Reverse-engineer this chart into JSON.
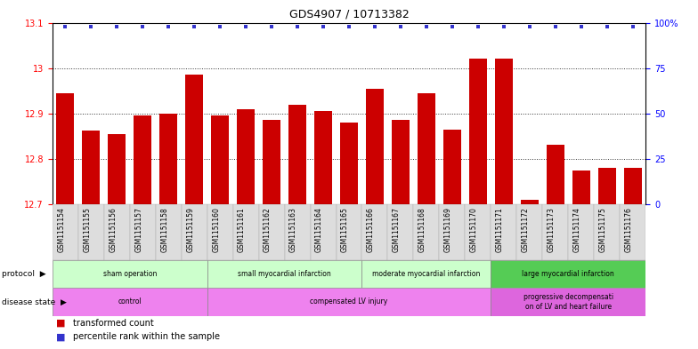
{
  "title": "GDS4907 / 10713382",
  "samples": [
    "GSM1151154",
    "GSM1151155",
    "GSM1151156",
    "GSM1151157",
    "GSM1151158",
    "GSM1151159",
    "GSM1151160",
    "GSM1151161",
    "GSM1151162",
    "GSM1151163",
    "GSM1151164",
    "GSM1151165",
    "GSM1151166",
    "GSM1151167",
    "GSM1151168",
    "GSM1151169",
    "GSM1151170",
    "GSM1151171",
    "GSM1151172",
    "GSM1151173",
    "GSM1151174",
    "GSM1151175",
    "GSM1151176"
  ],
  "bar_values": [
    12.945,
    12.862,
    12.855,
    12.895,
    12.9,
    12.985,
    12.895,
    12.91,
    12.885,
    12.92,
    12.905,
    12.88,
    12.955,
    12.885,
    12.945,
    12.865,
    13.02,
    13.02,
    12.71,
    12.83,
    12.775,
    12.78,
    12.78
  ],
  "percentile_values": [
    98,
    98,
    98,
    98,
    98,
    98,
    98,
    98,
    98,
    98,
    98,
    98,
    98,
    98,
    98,
    98,
    98,
    98,
    98,
    98,
    98,
    98,
    98
  ],
  "ylim_left": [
    12.7,
    13.1
  ],
  "ylim_right": [
    0,
    100
  ],
  "yticks_left": [
    12.7,
    12.8,
    12.9,
    13.0,
    13.1
  ],
  "ytick_labels_left": [
    "12.7",
    "12.8",
    "12.9",
    "13",
    "13.1"
  ],
  "yticks_right": [
    0,
    25,
    50,
    75,
    100
  ],
  "ytick_labels_right": [
    "0",
    "25",
    "50",
    "75",
    "100%"
  ],
  "bar_color": "#CC0000",
  "dot_color": "#3333CC",
  "bar_width": 0.7,
  "grid_lines": [
    12.8,
    12.9,
    13.0
  ],
  "protocol_groups": [
    {
      "label": "sham operation",
      "start": 0,
      "end": 5,
      "color": "#ccffcc"
    },
    {
      "label": "small myocardial infarction",
      "start": 6,
      "end": 11,
      "color": "#ccffcc"
    },
    {
      "label": "moderate myocardial infarction",
      "start": 12,
      "end": 16,
      "color": "#ccffcc"
    },
    {
      "label": "large myocardial infarction",
      "start": 17,
      "end": 22,
      "color": "#55cc55"
    }
  ],
  "disease_groups": [
    {
      "label": "control",
      "start": 0,
      "end": 5,
      "color": "#ee82ee"
    },
    {
      "label": "compensated LV injury",
      "start": 6,
      "end": 16,
      "color": "#ee82ee"
    },
    {
      "label": "progressive decompensati\non of LV and heart failure",
      "start": 17,
      "end": 22,
      "color": "#dd66dd"
    }
  ],
  "bg_color": "#ffffff",
  "xtick_bg": "#dddddd",
  "title_fontsize": 9,
  "label_fontsize": 6,
  "tick_fontsize": 7
}
